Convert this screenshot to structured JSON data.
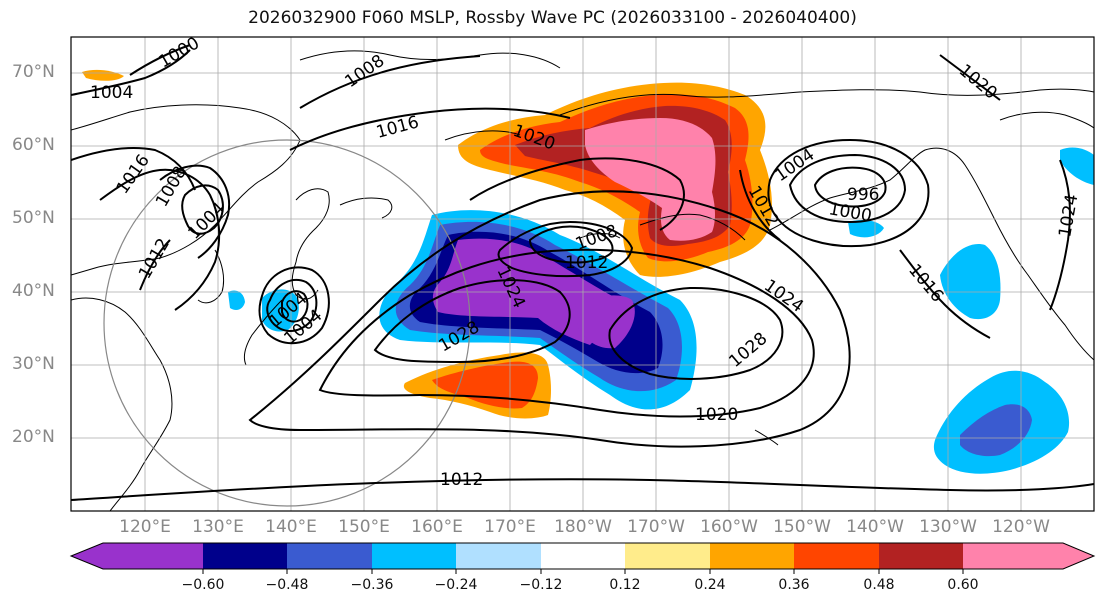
{
  "title": "2026032900 F060 MSLP, Rossby Wave PC (2026033100 - 2026040400)",
  "lat_labels": [
    "70°N",
    "60°N",
    "50°N",
    "40°N",
    "30°N",
    "20°N"
  ],
  "lon_labels": [
    "120°E",
    "130°E",
    "140°E",
    "150°E",
    "160°E",
    "170°E",
    "180°W",
    "170°W",
    "160°W",
    "150°W",
    "140°W",
    "130°W",
    "120°W"
  ],
  "isobar_labels": [
    "1000",
    "1004",
    "1008",
    "1016",
    "1020",
    "1016",
    "1008",
    "1004",
    "1012",
    "1004",
    "1004",
    "1024",
    "1028",
    "1012",
    "1008",
    "1024",
    "1028",
    "1020",
    "1012",
    "996",
    "1000",
    "1004",
    "1012",
    "1016",
    "1024",
    "1020"
  ],
  "colorbar": {
    "colors": [
      "#9932CC",
      "#00008B",
      "#3A5BD0",
      "#00BFFF",
      "#B0E0FF",
      "#FFFFFF",
      "#FFEC8B",
      "#FFA500",
      "#FF4500",
      "#B22222",
      "#FF82AB"
    ],
    "tick_labels": [
      "−0.60",
      "−0.48",
      "−0.36",
      "−0.24",
      "−0.12",
      "0.12",
      "0.24",
      "0.36",
      "0.48",
      "0.60"
    ]
  }
}
